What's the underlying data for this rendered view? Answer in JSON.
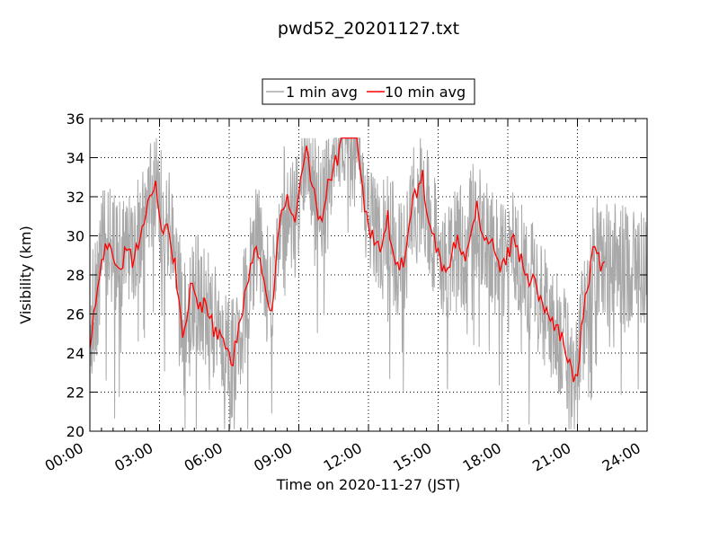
{
  "chart_data": {
    "type": "line",
    "title": "pwd52_20201127.txt",
    "xlabel": "Time on 2020-11-27 (JST)",
    "ylabel": "Visibility (km)",
    "xlim": [
      "00:00",
      "24:00"
    ],
    "ylim": [
      20,
      36
    ],
    "x_unit": "hours",
    "x_ticks": [
      "00:00",
      "03:00",
      "06:00",
      "09:00",
      "12:00",
      "15:00",
      "18:00",
      "21:00",
      "24:00"
    ],
    "y_ticks": [
      "20",
      "22",
      "24",
      "26",
      "28",
      "30",
      "32",
      "34",
      "36"
    ],
    "grid": true,
    "legend_position": "top-center",
    "series": [
      {
        "name": "1 min avg",
        "color": "#a9a9a9",
        "sample_interval_min": 1,
        "approx_10min_mean_km": [
          25.0,
          26.5,
          27.5,
          29.0,
          29.5,
          30.0,
          29.5,
          28.5,
          29.0,
          29.5,
          29.5,
          29.0,
          29.5,
          30.0,
          31.0,
          31.5,
          32.0,
          32.5,
          31.5,
          31.0,
          30.5,
          30.0,
          29.0,
          27.5,
          26.0,
          25.5,
          26.5,
          27.5,
          27.0,
          26.5,
          26.5,
          26.0,
          25.5,
          25.0,
          24.5,
          24.5,
          24.0,
          23.8,
          24.5,
          25.5,
          26.5,
          27.5,
          28.5,
          29.5,
          29.0,
          28.0,
          27.5,
          26.5,
          28.5,
          30.5,
          31.5,
          32.0,
          31.5,
          31.0,
          32.0,
          33.0,
          34.0,
          33.5,
          32.5,
          31.5,
          31.0,
          32.0,
          33.0,
          33.5,
          34.0,
          35.0,
          35.0,
          35.0,
          35.0,
          35.0,
          34.0,
          32.0,
          31.0,
          30.5,
          30.0,
          29.5,
          30.0,
          31.0,
          30.0,
          29.0,
          28.5,
          29.0,
          30.0,
          31.0,
          31.5,
          32.0,
          32.5,
          31.5,
          30.5,
          30.0,
          29.0,
          28.5,
          28.0,
          28.5,
          29.5,
          30.0,
          29.5,
          29.0,
          30.0,
          30.5,
          31.0,
          30.5,
          30.0,
          29.5,
          29.5,
          29.0,
          28.5,
          28.5,
          29.0,
          29.5,
          29.5,
          29.0,
          28.5,
          28.0,
          27.5,
          27.5,
          27.0,
          26.5,
          26.0,
          25.5,
          25.5,
          25.0,
          24.5,
          24.0,
          23.5,
          22.5,
          23.0,
          25.0,
          26.5,
          27.5,
          28.5,
          29.0,
          28.5,
          28.5
        ]
      },
      {
        "name": "10 min avg",
        "color": "#ff0000",
        "sample_interval_min": 10,
        "values_km": [
          24.5,
          26.0,
          27.0,
          28.5,
          29.5,
          30.0,
          29.3,
          28.0,
          28.5,
          29.0,
          29.5,
          28.8,
          29.5,
          30.0,
          31.0,
          31.5,
          32.0,
          32.8,
          31.0,
          30.5,
          30.2,
          29.5,
          28.5,
          26.5,
          24.5,
          25.5,
          27.5,
          27.0,
          26.5,
          26.5,
          26.5,
          26.0,
          25.2,
          25.0,
          24.8,
          24.5,
          24.0,
          23.5,
          24.8,
          25.8,
          26.8,
          28.0,
          29.0,
          29.5,
          29.0,
          27.8,
          27.0,
          26.0,
          28.5,
          30.5,
          31.5,
          32.0,
          31.0,
          30.5,
          32.0,
          33.5,
          34.5,
          33.0,
          32.0,
          31.0,
          30.5,
          32.0,
          33.0,
          33.5,
          34.0,
          35.0,
          35.0,
          35.0,
          35.0,
          35.0,
          33.5,
          31.5,
          30.5,
          30.0,
          29.5,
          29.5,
          30.0,
          31.0,
          29.5,
          28.5,
          28.2,
          28.8,
          30.0,
          31.5,
          32.0,
          32.5,
          33.0,
          31.5,
          30.5,
          30.0,
          29.0,
          28.5,
          28.0,
          28.5,
          29.5,
          30.0,
          29.5,
          29.0,
          30.0,
          30.5,
          31.5,
          30.5,
          30.0,
          29.5,
          29.5,
          29.0,
          28.5,
          28.5,
          29.0,
          29.5,
          29.8,
          29.0,
          28.5,
          28.0,
          27.5,
          27.8,
          27.0,
          26.5,
          26.0,
          25.8,
          25.5,
          25.2,
          24.8,
          24.2,
          23.5,
          22.3,
          23.0,
          25.0,
          26.8,
          27.8,
          29.0,
          29.2,
          28.5,
          28.8
        ]
      }
    ]
  }
}
